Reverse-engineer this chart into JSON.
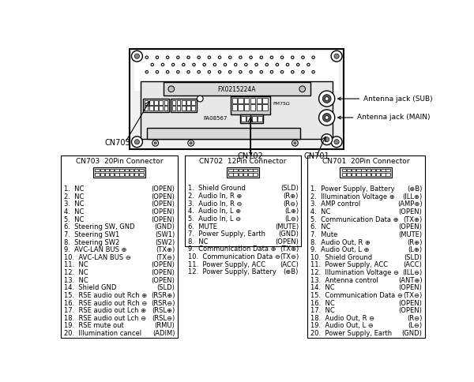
{
  "bg_color": "#ffffff",
  "antenna_sub": "Antenna jack (SUB)",
  "antenna_main": "Antenna jack (MAIN)",
  "cn703_title": "CN703  20Pin Connector",
  "cn702_title": "CN702  12Pin Connector",
  "cn701_title": "CN701  20Pin Connector",
  "cn703_pins": [
    [
      "1.  NC",
      "(OPEN)"
    ],
    [
      "2.  NC",
      "(OPEN)"
    ],
    [
      "3.  NC",
      "(OPEN)"
    ],
    [
      "4.  NC",
      "(OPEN)"
    ],
    [
      "5.  NC",
      "(OPEN)"
    ],
    [
      "6.  Steering SW, GND",
      "(GND)"
    ],
    [
      "7.  Steering SW1",
      "(SW1)"
    ],
    [
      "8.  Steering SW2",
      "(SW2)"
    ],
    [
      "9.  AVC-LAN BUS ⊕",
      "(TX⊕)"
    ],
    [
      "10.  AVC-LAN BUS ⊖",
      "(TX⊖)"
    ],
    [
      "11.  NC",
      "(OPEN)"
    ],
    [
      "12.  NC",
      "(OPEN)"
    ],
    [
      "13.  NC",
      "(OPEN)"
    ],
    [
      "14.  Shield GND",
      "(SLD)"
    ],
    [
      "15.  RSE audio out Rch ⊕",
      "(RSR⊕)"
    ],
    [
      "16.  RSE audio out Rch ⊖",
      "(RSR⊖)"
    ],
    [
      "17.  RSE audio out Lch ⊕",
      "(RSL⊕)"
    ],
    [
      "18.  RSE audio out Lch ⊖",
      "(RSL⊖)"
    ],
    [
      "19.  RSE mute out",
      "(RMU)"
    ],
    [
      "20.  Illumination cancel",
      "(ADIM)"
    ]
  ],
  "cn702_pins": [
    [
      "1.  Shield Ground",
      "(SLD)"
    ],
    [
      "2.  Audio In, R ⊕",
      "(R⊕)"
    ],
    [
      "3.  Audio In, R ⊖",
      "(R⊖)"
    ],
    [
      "4.  Audio In, L ⊕",
      "(L⊕)"
    ],
    [
      "5.  Audio In, L ⊖",
      "(L⊖)"
    ],
    [
      "6.  MUTE",
      "(MUTE)"
    ],
    [
      "7.  Power Supply, Earth",
      "(GND)"
    ],
    [
      "8.  NC",
      "(OPEN)"
    ],
    [
      "9.  Communication Data ⊕",
      "(TX⊕)"
    ],
    [
      "10.  Communication Data ⊖",
      "(TX⊖)"
    ],
    [
      "11.  Power Supply, ACC",
      "(ACC)"
    ],
    [
      "12.  Power Supply, Battery",
      "(⊕B)"
    ]
  ],
  "cn701_pins": [
    [
      "1.  Power Supply, Battery",
      "(⊕B)"
    ],
    [
      "2.  Illumination Voltage ⊕",
      "(ILL⊕)"
    ],
    [
      "3.  AMP control",
      "(AMP⊕)"
    ],
    [
      "4.  NC",
      "(OPEN)"
    ],
    [
      "5.  Communication Data ⊕",
      "(TX⊕)"
    ],
    [
      "6.  NC",
      "(OPEN)"
    ],
    [
      "7.  Mute",
      "(MUTE)"
    ],
    [
      "8.  Audio Out, R ⊕",
      "(R⊕)"
    ],
    [
      "9.  Audio Out, L ⊕",
      "(L⊕)"
    ],
    [
      "10.  Shield Ground",
      "(SLD)"
    ],
    [
      "11.  Power Supply, ACC",
      "(ACC)"
    ],
    [
      "12.  Illumination Voltage ⊖",
      "(ILL⊖)"
    ],
    [
      "13.  Antenna control",
      "(ANT⊕)"
    ],
    [
      "14.  NC",
      "(OPEN)"
    ],
    [
      "15.  Communication Data ⊖",
      "(TX⊖)"
    ],
    [
      "16.  NC",
      "(OPEN)"
    ],
    [
      "17.  NC",
      "(OPEN)"
    ],
    [
      "18.  Audio Out, R ⊖",
      "(R⊖)"
    ],
    [
      "19.  Audio Out, L ⊖",
      "(L⊖)"
    ],
    [
      "20.  Power Supply, Earth",
      "(GND)"
    ]
  ]
}
